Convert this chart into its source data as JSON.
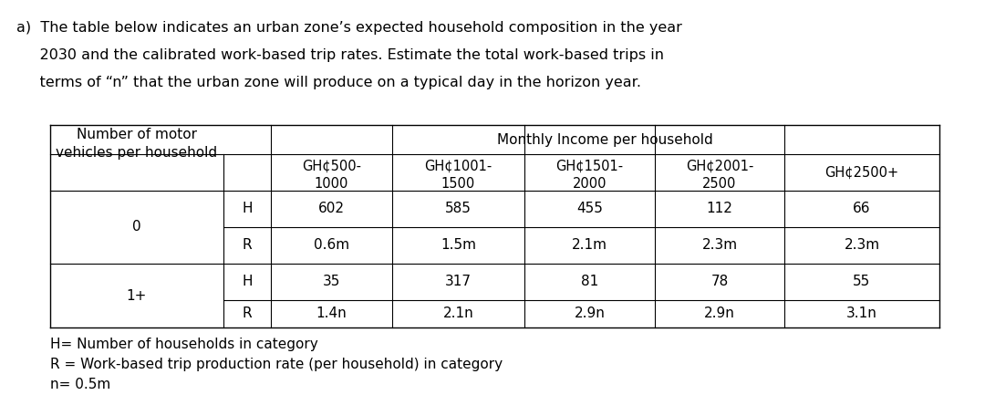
{
  "question_text_lines": [
    "a)  The table below indicates an urban zone’s expected household composition in the year",
    "     2030 and the calibrated work-based trip rates. Estimate the total work-based trips in",
    "     terms of “n” that the urban zone will produce on a typical day in the horizon year."
  ],
  "footnote1": "H= Number of households in category",
  "footnote2": "R = Work-based trip production rate (per household) in category",
  "footnote3": "n= 0.5m",
  "bg_color": "#ffffff",
  "text_color": "#000000",
  "font_size_question": 11.5,
  "font_size_table": 11.0,
  "font_size_footnote": 11.0,
  "header_row1_col0": "Number of motor",
  "header_row2_col0": "vehicles per household",
  "header_monthly_income": "Monthly Income per household",
  "col_headers_line1": [
    "GH¢500-",
    "GH¢1001-",
    "GH¢1501-",
    "GH¢2001-",
    "GH¢2500+"
  ],
  "col_headers_line2": [
    "1000",
    "1500",
    "2000",
    "2500",
    ""
  ],
  "row0_label": "0",
  "row0_H_label": "H",
  "row0_R_label": "R",
  "row0_H_vals": [
    "602",
    "585",
    "455",
    "112",
    "66"
  ],
  "row0_R_vals": [
    "0.6m",
    "1.5m",
    "2.1m",
    "2.3m",
    "2.3m"
  ],
  "row1_label": "1+",
  "row1_H_label": "H",
  "row1_R_label": "R",
  "row1_H_vals": [
    "35",
    "317",
    "81",
    "78",
    "55"
  ],
  "row1_R_vals": [
    "1.4n",
    "2.1n",
    "2.9n",
    "2.9n",
    "3.1n"
  ]
}
